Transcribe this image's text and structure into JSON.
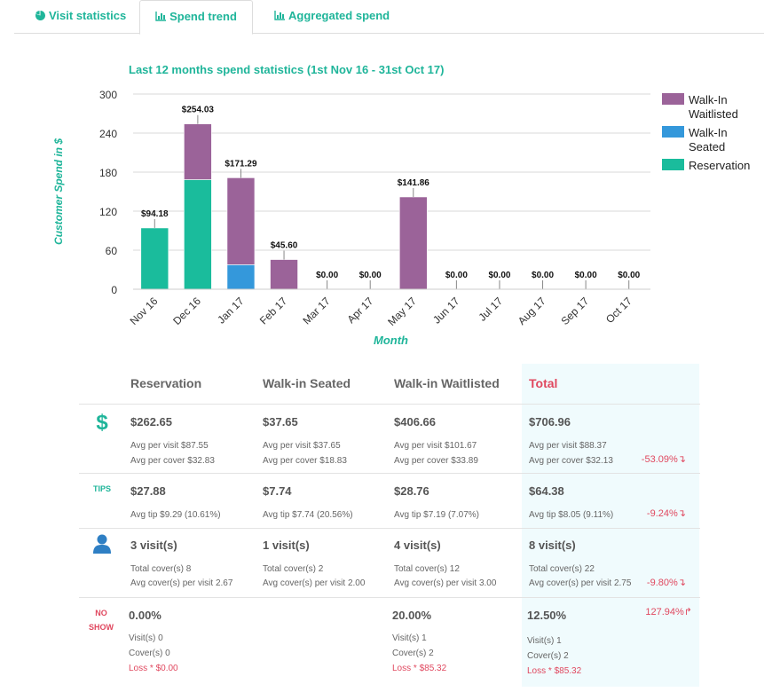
{
  "tabs": [
    {
      "label": "Visit statistics",
      "icon": "pie-chart-icon"
    },
    {
      "label": "Spend trend",
      "icon": "bar-chart-icon"
    },
    {
      "label": "Aggregated spend",
      "icon": "bar-chart-icon"
    }
  ],
  "chart_data": {
    "type": "bar",
    "stacked": true,
    "title": "Last 12 months spend statistics (1st Nov 16 - 31st Oct 17)",
    "xlabel": "Month",
    "ylabel": "Customer Spend in $",
    "ylim": [
      0,
      300
    ],
    "yticks": [
      0,
      60,
      120,
      180,
      240,
      300
    ],
    "grid": true,
    "legend": "right",
    "categories": [
      "Nov 16",
      "Dec 16",
      "Jan 17",
      "Feb 17",
      "Mar 17",
      "Apr 17",
      "May 17",
      "Jun 17",
      "Jul 17",
      "Aug 17",
      "Sep 17",
      "Oct 17"
    ],
    "series": [
      {
        "name": "Reservation",
        "color": "#1abc9c",
        "values": [
          94.18,
          168.47,
          0,
          0,
          0,
          0,
          0,
          0,
          0,
          0,
          0,
          0
        ]
      },
      {
        "name": "Walk-In Seated",
        "color": "#3498db",
        "values": [
          0,
          0,
          37.65,
          0,
          0,
          0,
          0,
          0,
          0,
          0,
          0,
          0
        ]
      },
      {
        "name": "Walk-In Waitlisted",
        "color": "#9b6399",
        "values": [
          0,
          85.56,
          133.64,
          45.6,
          0,
          0,
          141.86,
          0,
          0,
          0,
          0,
          0
        ]
      }
    ],
    "totals_labels": [
      "$94.18",
      "$254.03",
      "$171.29",
      "$45.60",
      "$0.00",
      "$0.00",
      "$141.86",
      "$0.00",
      "$0.00",
      "$0.00",
      "$0.00",
      "$0.00"
    ],
    "legend_order": [
      "Walk-In Waitlisted",
      "Walk-In Seated",
      "Reservation"
    ]
  },
  "table": {
    "headers": [
      "Reservation",
      "Walk-in Seated",
      "Walk-in Waitlisted",
      "Total"
    ],
    "spend": {
      "icon": "dollar-icon",
      "values": [
        "$262.65",
        "$37.65",
        "$406.66",
        "$706.96"
      ],
      "avg_visit": [
        "Avg per visit $87.55",
        "Avg per visit $37.65",
        "Avg per visit $101.67",
        "Avg per visit $88.37"
      ],
      "avg_cover": [
        "Avg per cover $32.83",
        "Avg per cover $18.83",
        "Avg per cover $33.89",
        "Avg per cover $32.13"
      ],
      "change": "-53.09%"
    },
    "tips": {
      "label": "TIPS",
      "values": [
        "$27.88",
        "$7.74",
        "$28.76",
        "$64.38"
      ],
      "avg": [
        "Avg tip $9.29 (10.61%)",
        "Avg tip $7.74 (20.56%)",
        "Avg tip $7.19 (7.07%)",
        "Avg tip $8.05 (9.11%)"
      ],
      "change": "-9.24%"
    },
    "visits": {
      "icon": "user-icon",
      "values": [
        "3 visit(s)",
        "1 visit(s)",
        "4 visit(s)",
        "8 visit(s)"
      ],
      "covers": [
        "Total cover(s) 8",
        "Total cover(s) 2",
        "Total cover(s) 12",
        "Total cover(s) 22"
      ],
      "avg": [
        "Avg cover(s) per visit 2.67",
        "Avg cover(s) per visit 2.00",
        "Avg cover(s) per visit 3.00",
        "Avg cover(s) per visit 2.75"
      ],
      "change": "-9.80%"
    },
    "noshow": {
      "label_line1": "NO",
      "label_line2": "SHOW",
      "values": [
        "0.00%",
        "20.00%",
        "12.50%"
      ],
      "visits": [
        "Visit(s) 0",
        "Visit(s) 1",
        "Visit(s) 1"
      ],
      "covers": [
        "Cover(s) 0",
        "Cover(s) 2",
        "Cover(s) 2"
      ],
      "loss": [
        "Loss * $0.00",
        "Loss * $85.32",
        "Loss * $85.32"
      ],
      "change": "127.94%"
    }
  },
  "colors": {
    "accent": "#1fb59a",
    "negative": "#e0485f",
    "total_bg": "#f0fbfd"
  }
}
